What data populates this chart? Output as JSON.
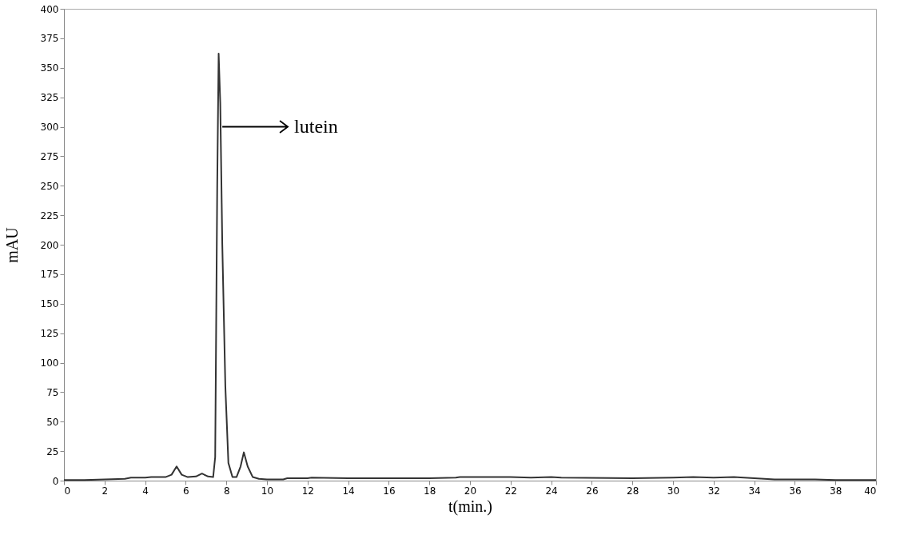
{
  "chart_data": {
    "type": "line",
    "xlabel": "t(min.)",
    "ylabel": "mAU",
    "x": [
      0,
      1,
      2,
      3,
      3.3,
      4,
      4.3,
      5,
      5.3,
      5.55,
      5.8,
      6.1,
      6.5,
      6.8,
      7.1,
      7.35,
      7.45,
      7.55,
      7.62,
      7.7,
      7.8,
      7.95,
      8.1,
      8.3,
      8.5,
      8.7,
      8.86,
      9.05,
      9.3,
      9.6,
      10,
      10.8,
      11,
      12,
      12.2,
      14,
      18,
      19.3,
      19.5,
      20,
      22,
      23,
      24,
      24.5,
      28,
      30,
      31,
      32,
      33,
      34,
      35,
      37,
      38,
      40
    ],
    "values": [
      0.5,
      0.5,
      1,
      1.5,
      2.5,
      2.5,
      3,
      3,
      5,
      12,
      5,
      3,
      3.5,
      6,
      3.5,
      3,
      20,
      250,
      362,
      320,
      200,
      80,
      15,
      3,
      3,
      12,
      24,
      12,
      3,
      1.5,
      1,
      1,
      2,
      2,
      2.5,
      2,
      2,
      2.5,
      3,
      3,
      3,
      2.5,
      3,
      2.5,
      2,
      2.5,
      3,
      2.5,
      3,
      2,
      1,
      1,
      0.5,
      0.5
    ],
    "color": "#333333",
    "xlim": [
      0,
      40
    ],
    "xticks": [
      0,
      2,
      4,
      6,
      8,
      10,
      12,
      14,
      16,
      18,
      20,
      22,
      24,
      26,
      28,
      30,
      32,
      34,
      36,
      38,
      40
    ],
    "ylim": [
      0,
      400
    ],
    "yticks": [
      0,
      25,
      50,
      75,
      100,
      125,
      150,
      175,
      200,
      225,
      250,
      275,
      300,
      325,
      350,
      375,
      400
    ],
    "grid": false,
    "marker": "none",
    "line_style": "solid",
    "annotations": [
      {
        "text": "lutein",
        "x": 7.8,
        "y": 300
      }
    ]
  }
}
